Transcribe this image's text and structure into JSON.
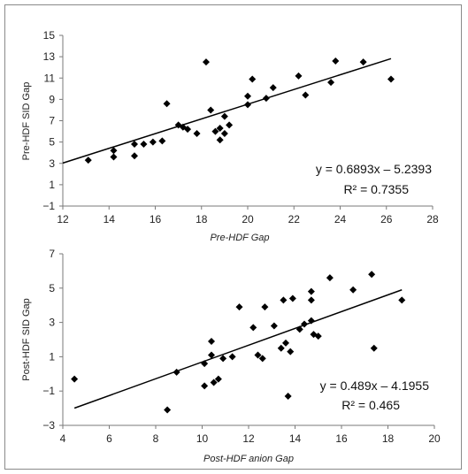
{
  "chart_data": [
    {
      "type": "scatter",
      "xlabel": "Pre-HDF Gap",
      "ylabel": "Pre-HDF SID Gap",
      "xlim": [
        12,
        28
      ],
      "ylim": [
        -1,
        15
      ],
      "xticks": [
        "12",
        "14",
        "16",
        "18",
        "20",
        "22",
        "24",
        "26",
        "28"
      ],
      "yticks": [
        "15",
        "13",
        "11",
        "9",
        "7",
        "5",
        "3",
        "1",
        "−1"
      ],
      "points": [
        {
          "x": 13.1,
          "y": 3.3
        },
        {
          "x": 14.2,
          "y": 3.6
        },
        {
          "x": 14.2,
          "y": 4.2
        },
        {
          "x": 15.1,
          "y": 3.7
        },
        {
          "x": 15.1,
          "y": 4.8
        },
        {
          "x": 15.5,
          "y": 4.8
        },
        {
          "x": 15.9,
          "y": 5.0
        },
        {
          "x": 16.3,
          "y": 5.1
        },
        {
          "x": 16.5,
          "y": 8.6
        },
        {
          "x": 17.0,
          "y": 6.6
        },
        {
          "x": 17.2,
          "y": 6.4
        },
        {
          "x": 17.4,
          "y": 6.2
        },
        {
          "x": 17.8,
          "y": 5.8
        },
        {
          "x": 18.2,
          "y": 12.5
        },
        {
          "x": 18.4,
          "y": 8.0
        },
        {
          "x": 18.6,
          "y": 6.0
        },
        {
          "x": 18.8,
          "y": 6.3
        },
        {
          "x": 18.8,
          "y": 5.2
        },
        {
          "x": 19.0,
          "y": 7.4
        },
        {
          "x": 19.0,
          "y": 5.8
        },
        {
          "x": 19.2,
          "y": 6.6
        },
        {
          "x": 20.0,
          "y": 9.3
        },
        {
          "x": 20.0,
          "y": 8.5
        },
        {
          "x": 20.2,
          "y": 10.9
        },
        {
          "x": 20.8,
          "y": 9.1
        },
        {
          "x": 21.1,
          "y": 10.1
        },
        {
          "x": 22.2,
          "y": 11.2
        },
        {
          "x": 22.5,
          "y": 9.4
        },
        {
          "x": 23.6,
          "y": 10.6
        },
        {
          "x": 23.8,
          "y": 12.6
        },
        {
          "x": 25.0,
          "y": 12.5
        },
        {
          "x": 26.2,
          "y": 10.9
        }
      ],
      "trendline": {
        "slope": 0.6893,
        "intercept": -5.2393,
        "x_range": [
          12,
          26.2
        ]
      },
      "equation_text": "y = 0.6893x – 5.2393",
      "r2_text": "R² = 0.7355"
    },
    {
      "type": "scatter",
      "xlabel": "Post-HDF anion Gap",
      "ylabel": "Post-HDF SID Gap",
      "xlim": [
        4,
        20
      ],
      "ylim": [
        -3,
        7
      ],
      "xticks": [
        "4",
        "6",
        "8",
        "10",
        "12",
        "14",
        "16",
        "18",
        "20"
      ],
      "yticks": [
        "7",
        "5",
        "3",
        "1",
        "−1",
        "−3"
      ],
      "points": [
        {
          "x": 4.5,
          "y": -0.3
        },
        {
          "x": 8.5,
          "y": -2.1
        },
        {
          "x": 8.9,
          "y": 0.1
        },
        {
          "x": 10.1,
          "y": -0.7
        },
        {
          "x": 10.1,
          "y": 0.6
        },
        {
          "x": 10.4,
          "y": 1.1
        },
        {
          "x": 10.4,
          "y": 1.9
        },
        {
          "x": 10.5,
          "y": -0.5
        },
        {
          "x": 10.7,
          "y": -0.3
        },
        {
          "x": 10.9,
          "y": 0.9
        },
        {
          "x": 11.3,
          "y": 1.0
        },
        {
          "x": 11.6,
          "y": 3.9
        },
        {
          "x": 12.2,
          "y": 2.7
        },
        {
          "x": 12.4,
          "y": 1.1
        },
        {
          "x": 12.6,
          "y": 0.9
        },
        {
          "x": 12.7,
          "y": 3.9
        },
        {
          "x": 13.1,
          "y": 2.8
        },
        {
          "x": 13.4,
          "y": 1.5
        },
        {
          "x": 13.5,
          "y": 4.3
        },
        {
          "x": 13.6,
          "y": 1.8
        },
        {
          "x": 13.7,
          "y": -1.3
        },
        {
          "x": 13.8,
          "y": 1.3
        },
        {
          "x": 13.9,
          "y": 4.4
        },
        {
          "x": 14.2,
          "y": 2.6
        },
        {
          "x": 14.4,
          "y": 2.9
        },
        {
          "x": 14.7,
          "y": 4.3
        },
        {
          "x": 14.7,
          "y": 4.8
        },
        {
          "x": 14.7,
          "y": 3.1
        },
        {
          "x": 14.8,
          "y": 2.3
        },
        {
          "x": 15.0,
          "y": 2.2
        },
        {
          "x": 15.5,
          "y": 5.6
        },
        {
          "x": 16.5,
          "y": 4.9
        },
        {
          "x": 17.3,
          "y": 5.8
        },
        {
          "x": 17.4,
          "y": 1.5
        },
        {
          "x": 18.6,
          "y": 4.3
        }
      ],
      "trendline": {
        "slope": 0.489,
        "intercept": -4.1955,
        "x_range": [
          4.5,
          18.6
        ]
      },
      "equation_text": "y = 0.489x – 4.1955",
      "r2_text": "R² = 0.465"
    }
  ]
}
